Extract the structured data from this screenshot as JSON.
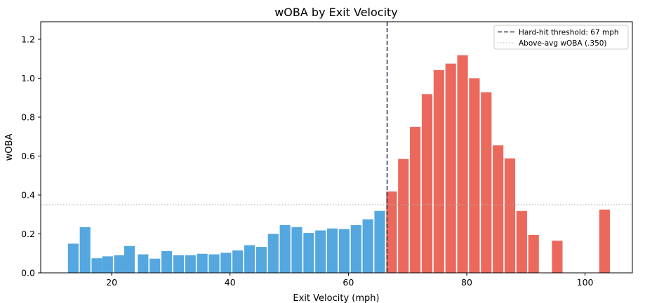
{
  "chart_data": {
    "type": "bar",
    "title": "wOBA by Exit Velocity",
    "xlabel": "Exit Velocity (mph)",
    "ylabel": "wOBA",
    "xlim": [
      8,
      108
    ],
    "ylim": [
      0,
      1.29
    ],
    "xticks": [
      20,
      40,
      60,
      80,
      100
    ],
    "yticks": [
      0.0,
      0.2,
      0.4,
      0.6,
      0.8,
      1.0,
      1.2
    ],
    "xtick_labels": [
      "20",
      "40",
      "60",
      "80",
      "100"
    ],
    "ytick_labels": [
      "0.0",
      "0.2",
      "0.4",
      "0.6",
      "0.8",
      "1.0",
      "1.2"
    ],
    "bar_width": 1.8,
    "x": [
      13.5,
      15.5,
      17.5,
      19.3,
      21.3,
      23.0,
      25.3,
      27.3,
      29.3,
      31.3,
      33.3,
      35.3,
      37.3,
      39.3,
      41.3,
      43.3,
      45.3,
      47.3,
      49.3,
      51.3,
      53.3,
      55.3,
      57.3,
      59.3,
      61.3,
      63.3,
      65.3,
      67.3,
      69.3,
      71.3,
      73.3,
      75.3,
      77.3,
      79.3,
      81.3,
      83.3,
      85.3,
      87.3,
      89.3,
      91.3,
      95.3,
      103.3
    ],
    "values": [
      0.15,
      0.235,
      0.075,
      0.085,
      0.09,
      0.138,
      0.095,
      0.073,
      0.112,
      0.09,
      0.09,
      0.098,
      0.095,
      0.103,
      0.115,
      0.142,
      0.133,
      0.2,
      0.245,
      0.235,
      0.205,
      0.218,
      0.228,
      0.225,
      0.245,
      0.275,
      0.318,
      0.418,
      0.585,
      0.75,
      0.918,
      1.042,
      1.075,
      1.118,
      1.0,
      0.928,
      0.655,
      0.588,
      0.318,
      0.195,
      0.165,
      0.325
    ],
    "threshold": 67,
    "reference_woba": 0.35,
    "colors": {
      "below_threshold": "#54a7df",
      "above_threshold": "#eb695c",
      "threshold_line": "#2c3e50",
      "reference_line": "#b0b0b0"
    },
    "legend": {
      "location": "top-right",
      "entries": [
        {
          "label": "Hard-hit threshold: 67 mph",
          "style": "dashed"
        },
        {
          "label": "Above-avg wOBA (.350)",
          "style": "dotted"
        }
      ]
    },
    "grid": false
  }
}
